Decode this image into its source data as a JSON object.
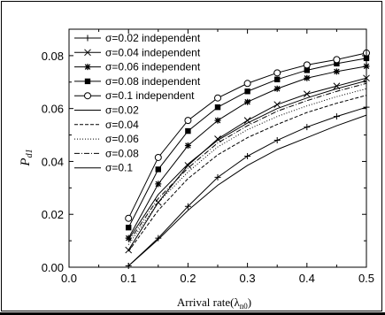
{
  "chart_data": {
    "type": "line",
    "xlabel": "Arrival rate(λ",
    "xlabel_sub": "n0",
    "xlabel_close": ")",
    "ylabel": "P",
    "ylabel_sub": "d1",
    "xlim": [
      0.0,
      0.5
    ],
    "ylim": [
      0.0,
      0.09
    ],
    "x_ticks": [
      "0.0",
      "0.1",
      "0.2",
      "0.3",
      "0.4",
      "0.5"
    ],
    "y_ticks": [
      "0.00",
      "0.02",
      "0.04",
      "0.06",
      "0.08"
    ],
    "x": [
      0.1,
      0.15,
      0.2,
      0.25,
      0.3,
      0.35,
      0.4,
      0.45,
      0.5
    ],
    "legend_position": "top-left",
    "series": [
      {
        "name": "σ=0.02 independent",
        "marker": "plus",
        "line": "solid",
        "values": [
          0.0005,
          0.011,
          0.023,
          0.034,
          0.042,
          0.048,
          0.053,
          0.057,
          0.0605
        ]
      },
      {
        "name": "σ=0.04 independent",
        "marker": "x",
        "line": "solid",
        "values": [
          0.0065,
          0.0245,
          0.0385,
          0.0485,
          0.0555,
          0.0615,
          0.0655,
          0.0685,
          0.0715
        ]
      },
      {
        "name": "σ=0.06 independent",
        "marker": "star",
        "line": "solid",
        "values": [
          0.011,
          0.0315,
          0.046,
          0.0555,
          0.0625,
          0.0675,
          0.0715,
          0.074,
          0.076
        ]
      },
      {
        "name": "σ=0.08 independent",
        "marker": "filled-square",
        "line": "solid",
        "values": [
          0.015,
          0.037,
          0.0515,
          0.0605,
          0.0665,
          0.071,
          0.0745,
          0.077,
          0.079
        ]
      },
      {
        "name": "σ=0.1 independent",
        "marker": "open-circle",
        "line": "solid",
        "values": [
          0.0185,
          0.0415,
          0.0555,
          0.064,
          0.0695,
          0.0735,
          0.0765,
          0.0785,
          0.081
        ]
      },
      {
        "name": "σ=0.02",
        "marker": "none",
        "line": "solid",
        "values": [
          0.0005,
          0.0105,
          0.0215,
          0.031,
          0.0385,
          0.0445,
          0.049,
          0.0535,
          0.0575
        ]
      },
      {
        "name": "σ=0.04",
        "marker": "none",
        "line": "dashed",
        "values": [
          0.006,
          0.0215,
          0.0335,
          0.0425,
          0.049,
          0.054,
          0.0585,
          0.062,
          0.065
        ]
      },
      {
        "name": "σ=0.06",
        "marker": "none",
        "line": "dotted",
        "values": [
          0.0085,
          0.0245,
          0.036,
          0.0455,
          0.052,
          0.057,
          0.061,
          0.0645,
          0.0675
        ]
      },
      {
        "name": "σ=0.08",
        "marker": "none",
        "line": "dashdot",
        "values": [
          0.0095,
          0.026,
          0.0375,
          0.047,
          0.0535,
          0.059,
          0.063,
          0.0665,
          0.0695
        ]
      },
      {
        "name": "σ=0.1",
        "marker": "none",
        "line": "solid",
        "values": [
          0.0105,
          0.0275,
          0.039,
          0.048,
          0.0545,
          0.06,
          0.064,
          0.0675,
          0.0705
        ]
      }
    ]
  }
}
